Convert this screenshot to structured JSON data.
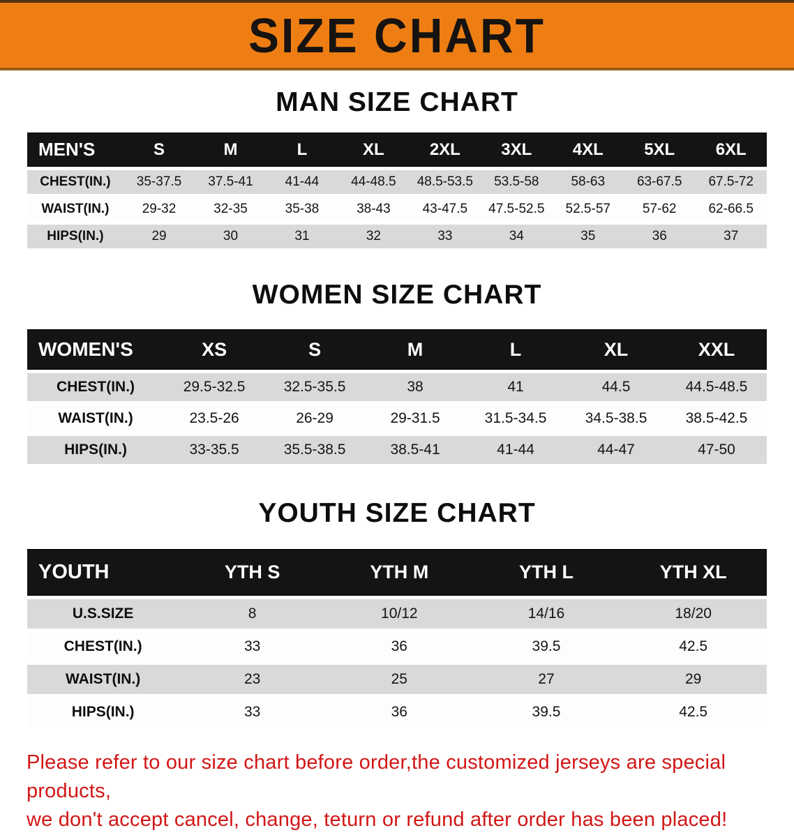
{
  "banner": {
    "title": "SIZE CHART",
    "bg_color": "#ee7e14",
    "text_color": "#161310"
  },
  "sections": [
    {
      "heading": "MAN SIZE CHART",
      "label": "MEN'S",
      "columns": [
        "S",
        "M",
        "L",
        "XL",
        "2XL",
        "3XL",
        "4XL",
        "5XL",
        "6XL"
      ],
      "rows": [
        {
          "label": "CHEST(IN.)",
          "values": [
            "35-37.5",
            "37.5-41",
            "41-44",
            "44-48.5",
            "48.5-53.5",
            "53.5-58",
            "58-63",
            "63-67.5",
            "67.5-72"
          ]
        },
        {
          "label": "WAIST(IN.)",
          "values": [
            "29-32",
            "32-35",
            "35-38",
            "38-43",
            "43-47.5",
            "47.5-52.5",
            "52.5-57",
            "57-62",
            "62-66.5"
          ]
        },
        {
          "label": "HIPS(IN.)",
          "values": [
            "29",
            "30",
            "31",
            "32",
            "33",
            "34",
            "35",
            "36",
            "37"
          ]
        }
      ]
    },
    {
      "heading": "WOMEN SIZE CHART",
      "label": "WOMEN'S",
      "columns": [
        "XS",
        "S",
        "M",
        "L",
        "XL",
        "XXL"
      ],
      "rows": [
        {
          "label": "CHEST(IN.)",
          "values": [
            "29.5-32.5",
            "32.5-35.5",
            "38",
            "41",
            "44.5",
            "44.5-48.5"
          ]
        },
        {
          "label": "WAIST(IN.)",
          "values": [
            "23.5-26",
            "26-29",
            "29-31.5",
            "31.5-34.5",
            "34.5-38.5",
            "38.5-42.5"
          ]
        },
        {
          "label": "HIPS(IN.)",
          "values": [
            "33-35.5",
            "35.5-38.5",
            "38.5-41",
            "41-44",
            "44-47",
            "47-50"
          ]
        }
      ]
    },
    {
      "heading": "YOUTH SIZE CHART",
      "label": "YOUTH",
      "columns": [
        "YTH S",
        "YTH M",
        "YTH L",
        "YTH XL"
      ],
      "rows": [
        {
          "label": "U.S.SIZE",
          "values": [
            "8",
            "10/12",
            "14/16",
            "18/20"
          ]
        },
        {
          "label": "CHEST(IN.)",
          "values": [
            "33",
            "36",
            "39.5",
            "42.5"
          ]
        },
        {
          "label": "WAIST(IN.)",
          "values": [
            "23",
            "25",
            "27",
            "29"
          ]
        },
        {
          "label": "HIPS(IN.)",
          "values": [
            "33",
            "36",
            "39.5",
            "42.5"
          ]
        }
      ]
    }
  ],
  "footer": {
    "line1": "Please refer to our size chart before order,the customized jerseys are special products,",
    "line2": "we don't accept cancel, change, teturn or refund after order has been placed!",
    "text_color": "#d11616"
  }
}
